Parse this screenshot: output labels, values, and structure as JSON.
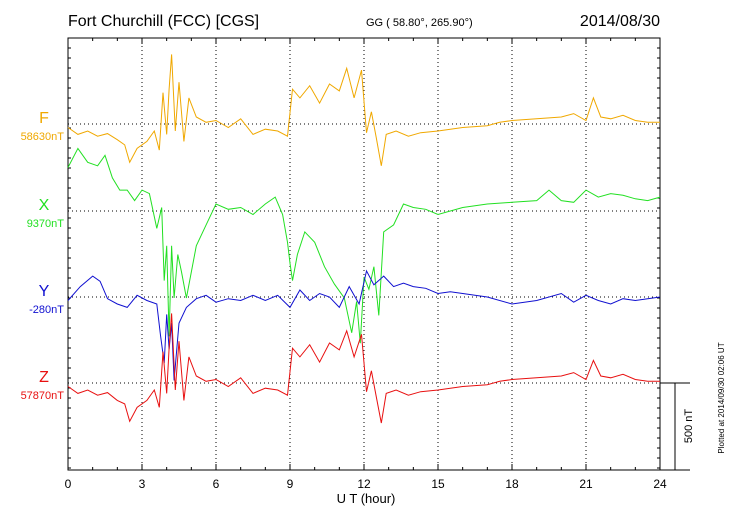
{
  "chart_data": {
    "type": "line",
    "title": "Fort Churchill (FCC)  [CGS]",
    "coords": "GG ( 58.80°, 265.90°)",
    "date": "2014/08/30",
    "xlabel": "U T (hour)",
    "xlim": [
      0,
      24
    ],
    "xticks": [
      0,
      3,
      6,
      9,
      12,
      15,
      18,
      21,
      24
    ],
    "grid": true,
    "scale_bar_label": "500 nT",
    "scale_bar_value_nT": 500,
    "plotted_note": "Plotted at 2014/09/30 02:06 UT",
    "series": [
      {
        "name": "F",
        "baseline_label": "58630nT",
        "color": "#f0a800",
        "x": [
          0,
          0.4,
          0.8,
          1.2,
          1.6,
          2.0,
          2.3,
          2.5,
          2.8,
          3.2,
          3.5,
          3.7,
          3.85,
          4.0,
          4.1,
          4.2,
          4.35,
          4.5,
          4.7,
          4.9,
          5.2,
          5.6,
          6.0,
          6.5,
          7.0,
          7.5,
          8.0,
          8.5,
          8.9,
          9.1,
          9.4,
          9.8,
          10.2,
          10.6,
          11.0,
          11.3,
          11.6,
          11.9,
          12.1,
          12.3,
          12.5,
          12.7,
          12.9,
          13.3,
          13.8,
          14.3,
          15.0,
          16.0,
          17.0,
          17.5,
          18.0,
          19.0,
          20.0,
          20.5,
          21.0,
          21.3,
          21.6,
          22.0,
          22.5,
          23.0,
          23.5,
          24.0
        ],
        "values": [
          -20,
          -60,
          -40,
          -70,
          -55,
          -90,
          -120,
          -220,
          -140,
          -100,
          -40,
          -150,
          180,
          -60,
          200,
          400,
          -40,
          240,
          -100,
          150,
          40,
          10,
          20,
          -20,
          30,
          -60,
          -30,
          -40,
          -70,
          200,
          150,
          220,
          120,
          230,
          190,
          320,
          150,
          310,
          -50,
          70,
          -80,
          -240,
          -60,
          -40,
          -70,
          -50,
          -40,
          -20,
          -10,
          10,
          20,
          30,
          40,
          60,
          20,
          150,
          40,
          30,
          50,
          20,
          10,
          10
        ]
      },
      {
        "name": "X",
        "baseline_label": "9370nT",
        "color": "#22e022",
        "x": [
          0,
          0.4,
          0.8,
          1.2,
          1.5,
          1.8,
          2.1,
          2.4,
          2.7,
          3.0,
          3.3,
          3.6,
          3.8,
          3.9,
          4.0,
          4.1,
          4.2,
          4.3,
          4.45,
          4.6,
          4.8,
          5.2,
          5.6,
          6.0,
          6.5,
          7.0,
          7.5,
          8.0,
          8.4,
          8.7,
          8.9,
          9.0,
          9.1,
          9.3,
          9.6,
          10.0,
          10.4,
          10.8,
          11.2,
          11.5,
          11.7,
          11.85,
          12.0,
          12.2,
          12.4,
          12.6,
          12.8,
          13.2,
          13.6,
          14.0,
          14.5,
          15.0,
          16.0,
          17.0,
          18.0,
          19.0,
          19.5,
          20.0,
          20.5,
          21.0,
          21.5,
          22.0,
          22.5,
          23.0,
          23.5,
          24.0
        ],
        "values": [
          250,
          360,
          280,
          260,
          320,
          190,
          120,
          120,
          60,
          120,
          100,
          -100,
          20,
          -400,
          -200,
          -720,
          -200,
          -500,
          -250,
          -350,
          -500,
          -200,
          -80,
          40,
          10,
          20,
          -20,
          40,
          80,
          -20,
          -180,
          -300,
          -400,
          -250,
          -120,
          -180,
          -320,
          -420,
          -500,
          -700,
          -520,
          -760,
          -380,
          -450,
          -320,
          -600,
          -120,
          -80,
          40,
          20,
          10,
          -20,
          20,
          40,
          50,
          60,
          120,
          60,
          50,
          120,
          80,
          100,
          90,
          70,
          60,
          80
        ]
      },
      {
        "name": "Y",
        "baseline_label": "-280nT",
        "color": "#1010d0",
        "x": [
          0,
          0.5,
          1.0,
          1.3,
          1.6,
          2.0,
          2.4,
          2.8,
          3.2,
          3.6,
          3.75,
          3.9,
          4.0,
          4.1,
          4.2,
          4.3,
          4.5,
          4.8,
          5.2,
          5.6,
          6.0,
          6.5,
          7.0,
          7.5,
          8.0,
          8.5,
          9.0,
          9.4,
          9.8,
          10.2,
          10.6,
          11.0,
          11.4,
          11.8,
          12.1,
          12.4,
          12.8,
          13.2,
          13.6,
          14.0,
          14.5,
          15.0,
          15.5,
          16.0,
          17.0,
          18.0,
          19.0,
          20.0,
          20.5,
          21.0,
          21.5,
          22.0,
          22.5,
          23.0,
          23.5,
          24.0
        ],
        "values": [
          -20,
          60,
          120,
          90,
          -10,
          -40,
          -60,
          10,
          -20,
          -40,
          -220,
          -380,
          -100,
          -300,
          -150,
          -480,
          -150,
          -60,
          -10,
          10,
          -30,
          -10,
          -20,
          10,
          -20,
          10,
          -60,
          40,
          -20,
          20,
          0,
          -60,
          60,
          -40,
          150,
          70,
          120,
          60,
          80,
          60,
          50,
          20,
          30,
          20,
          0,
          -40,
          -20,
          20,
          -30,
          10,
          -20,
          -40,
          -10,
          -20,
          -10,
          0
        ]
      },
      {
        "name": "Z",
        "baseline_label": "57870nT",
        "color": "#e81010",
        "x": [
          0,
          0.4,
          0.8,
          1.2,
          1.6,
          2.0,
          2.3,
          2.5,
          2.8,
          3.2,
          3.5,
          3.7,
          3.85,
          4.0,
          4.1,
          4.2,
          4.35,
          4.5,
          4.7,
          4.9,
          5.2,
          5.6,
          6.0,
          6.5,
          7.0,
          7.5,
          8.0,
          8.5,
          8.9,
          9.1,
          9.4,
          9.8,
          10.2,
          10.6,
          11.0,
          11.3,
          11.6,
          11.9,
          12.1,
          12.3,
          12.5,
          12.7,
          12.9,
          13.3,
          13.8,
          14.3,
          15.0,
          16.0,
          17.0,
          17.5,
          18.0,
          19.0,
          20.0,
          20.5,
          21.0,
          21.3,
          21.6,
          22.0,
          22.5,
          23.0,
          23.5,
          24.0
        ],
        "values": [
          -20,
          -60,
          -40,
          -70,
          -55,
          -100,
          -120,
          -220,
          -140,
          -100,
          -40,
          -140,
          180,
          -60,
          200,
          400,
          -40,
          240,
          -100,
          150,
          40,
          10,
          20,
          -20,
          30,
          -60,
          -30,
          -40,
          -70,
          200,
          150,
          220,
          120,
          230,
          190,
          300,
          150,
          280,
          -50,
          70,
          -80,
          -230,
          -60,
          -40,
          -70,
          -50,
          -40,
          -20,
          -10,
          10,
          20,
          30,
          40,
          60,
          20,
          130,
          40,
          30,
          50,
          20,
          10,
          10
        ]
      }
    ]
  }
}
